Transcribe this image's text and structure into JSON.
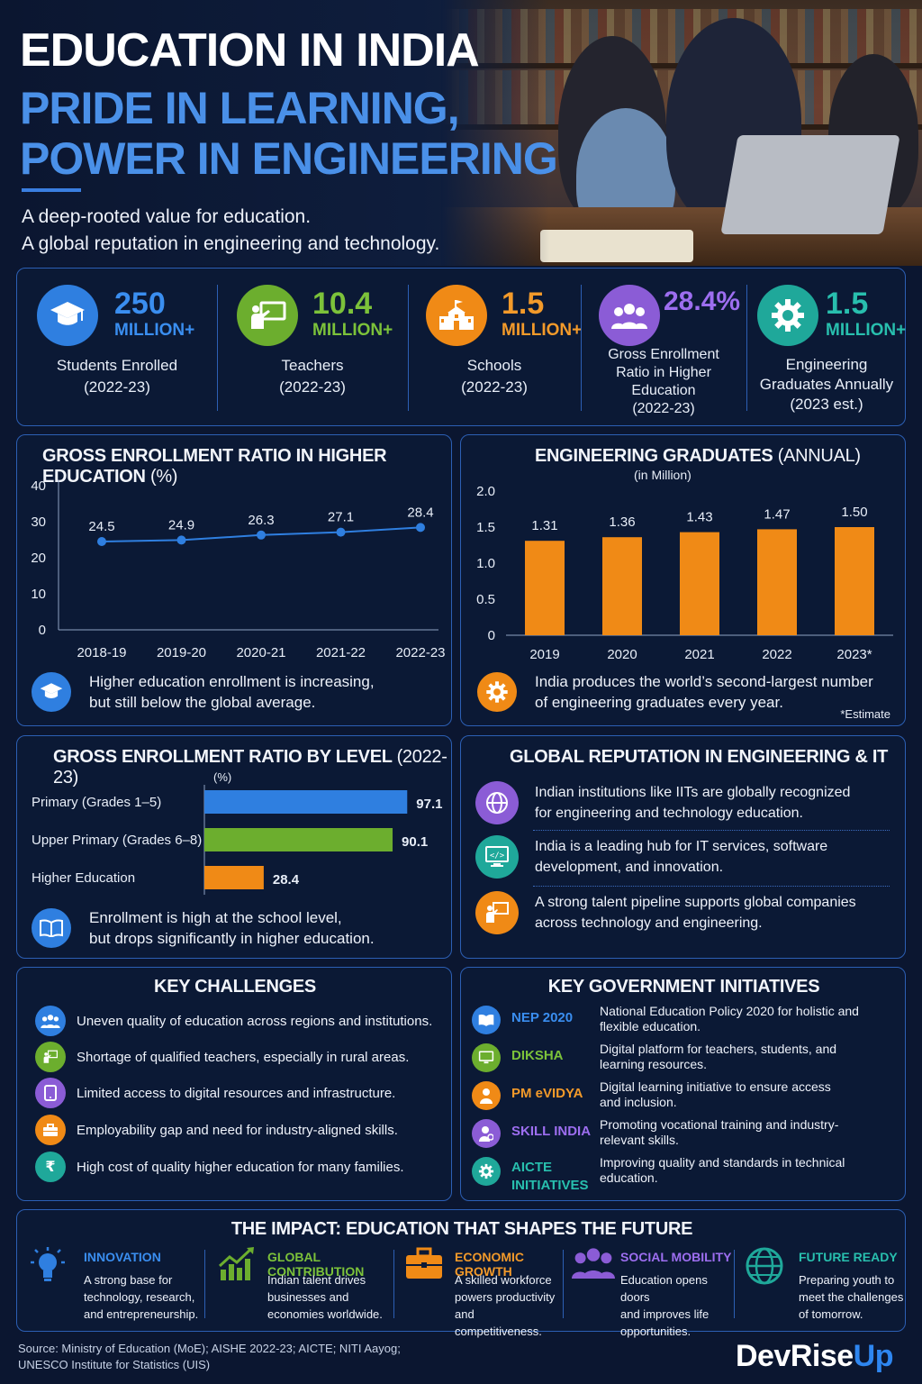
{
  "header": {
    "title": "EDUCATION IN INDIA",
    "subtitle_line1": "PRIDE IN LEARNING,",
    "subtitle_line2": "POWER IN ENGINEERING",
    "tagline_line1": "A deep-rooted value for education.",
    "tagline_line2": "A global reputation in engineering and technology."
  },
  "stats": [
    {
      "value": "250",
      "unit": "MILLION+",
      "label_line1": "Students Enrolled",
      "label_line2": "(2022-23)",
      "color": "#2f7fe0",
      "icon": "graduation-cap-icon"
    },
    {
      "value": "10.4",
      "unit": "MILLION+",
      "label_line1": "Teachers",
      "label_line2": "(2022-23)",
      "color": "#6cae2e",
      "icon": "teacher-board-icon"
    },
    {
      "value": "1.5",
      "unit": "MILLION+",
      "label_line1": "Schools",
      "label_line2": "(2022-23)",
      "color": "#f08a16",
      "icon": "school-building-icon"
    },
    {
      "value": "28.4%",
      "unit": "",
      "label_line1": "Gross Enrollment",
      "label_line2": "Ratio in Higher",
      "label_line3": "Education",
      "label_line4": "(2022-23)",
      "color": "#8b5cd6",
      "icon": "people-group-icon"
    },
    {
      "value": "1.5",
      "unit": "MILLION+",
      "label_line1": "Engineering",
      "label_line2": "Graduates Annually",
      "label_line3": "(2023 est.)",
      "color": "#1fa89a",
      "icon": "gear-icon"
    }
  ],
  "ger_chart": {
    "title": "GROSS ENROLLMENT RATIO IN HIGHER EDUCATION",
    "title_unit": "(%)",
    "note_line1": "Higher education enrollment is increasing,",
    "note_line2": "but still below the global average."
  },
  "eng_chart": {
    "title": "ENGINEERING GRADUATES",
    "title_unit": "(ANNUAL)",
    "subtitle": "(in Million)",
    "note_line1": "India produces the world’s second-largest number",
    "note_line2": "of engineering graduates every year.",
    "footnote": "*Estimate"
  },
  "level_chart": {
    "title": "GROSS ENROLLMENT RATIO BY LEVEL",
    "title_unit": "(2022-23)",
    "subtitle": "(%)",
    "note_line1": "Enrollment is high at the school level,",
    "note_line2": "but drops significantly in higher education."
  },
  "chart_data": [
    {
      "type": "line",
      "title": "GROSS ENROLLMENT RATIO IN HIGHER EDUCATION (%)",
      "x": [
        "2018-19",
        "2019-20",
        "2020-21",
        "2021-22",
        "2022-23"
      ],
      "values": [
        24.5,
        24.9,
        26.3,
        27.1,
        28.4
      ],
      "value_labels": [
        "24.5",
        "24.9",
        "26.3",
        "27.1",
        "28.4"
      ],
      "yticks": [
        "40",
        "30",
        "20",
        "10",
        "0"
      ],
      "ylim": [
        0,
        40
      ],
      "color": "#2f7fe0"
    },
    {
      "type": "bar",
      "title": "ENGINEERING GRADUATES (ANNUAL)",
      "categories": [
        "2019",
        "2020",
        "2021",
        "2022",
        "2023*"
      ],
      "values": [
        1.31,
        1.36,
        1.43,
        1.47,
        1.5
      ],
      "value_labels": [
        "1.31",
        "1.36",
        "1.43",
        "1.47",
        "1.50"
      ],
      "yticks": [
        "2.0",
        "1.5",
        "1.0",
        "0.5",
        "0"
      ],
      "ylim": [
        0,
        2.0
      ],
      "color": "#f08a16"
    },
    {
      "type": "bar",
      "orientation": "horizontal",
      "title": "GROSS ENROLLMENT RATIO BY LEVEL (2022-23)",
      "categories": [
        "Primary (Grades 1–5)",
        "Upper Primary (Grades 6–8)",
        "Higher Education"
      ],
      "values": [
        97.1,
        90.1,
        28.4
      ],
      "value_labels": [
        "97.1",
        "90.1",
        "28.4"
      ],
      "colors": [
        "#2f7fe0",
        "#6cae2e",
        "#f08a16"
      ],
      "xlim": [
        0,
        100
      ]
    }
  ],
  "global_reputation": {
    "title": "GLOBAL REPUTATION IN ENGINEERING & IT",
    "items": [
      {
        "line1": "Indian institutions like IITs are globally recognized",
        "line2": "for engineering and technology education.",
        "color": "#8b5cd6",
        "icon": "globe-network-icon"
      },
      {
        "line1": "India is a leading hub for IT services, software",
        "line2": "development, and innovation.",
        "color": "#1fa89a",
        "icon": "code-monitor-icon"
      },
      {
        "line1": "A strong talent pipeline supports global companies",
        "line2": "across technology and engineering.",
        "color": "#f08a16",
        "icon": "presenter-icon"
      }
    ]
  },
  "challenges": {
    "title": "KEY CHALLENGES",
    "items": [
      {
        "text": "Uneven quality of education across regions and institutions.",
        "color": "#2f7fe0",
        "icon": "people-icon"
      },
      {
        "text": "Shortage of qualified teachers, especially in rural areas.",
        "color": "#6cae2e",
        "icon": "teacher-icon"
      },
      {
        "text": "Limited access to digital resources and infrastructure.",
        "color": "#8b5cd6",
        "icon": "tablet-icon"
      },
      {
        "text": "Employability gap and need for industry-aligned skills.",
        "color": "#f08a16",
        "icon": "briefcase-icon"
      },
      {
        "text": "High cost of quality higher education for many families.",
        "color": "#1fa89a",
        "icon": "rupee-icon"
      }
    ]
  },
  "initiatives": {
    "title": "KEY GOVERNMENT INITIATIVES",
    "items": [
      {
        "name": "NEP 2020",
        "desc_line1": "National Education Policy 2020 for holistic and",
        "desc_line2": "flexible education.",
        "color": "#2f7fe0",
        "icon": "book-icon"
      },
      {
        "name": "DIKSHA",
        "desc_line1": "Digital platform for teachers, students, and",
        "desc_line2": "learning resources.",
        "color": "#6cae2e",
        "icon": "screen-icon"
      },
      {
        "name": "PM eVIDYA",
        "desc_line1": "Digital learning initiative to ensure access",
        "desc_line2": "and inclusion.",
        "color": "#f08a16",
        "icon": "learner-icon"
      },
      {
        "name": "SKILL INDIA",
        "desc_line1": "Promoting vocational training and industry-",
        "desc_line2": "relevant skills.",
        "color": "#8b5cd6",
        "icon": "skill-person-icon"
      },
      {
        "name_line1": "AICTE",
        "name_line2": "INITIATIVES",
        "desc_line1": "Improving quality and standards in technical",
        "desc_line2": "education.",
        "color": "#1fa89a",
        "icon": "gear-icon"
      }
    ]
  },
  "impact": {
    "title": "THE IMPACT: EDUCATION THAT SHAPES THE FUTURE",
    "items": [
      {
        "title": "INNOVATION",
        "line1": "A strong base for",
        "line2": "technology, research,",
        "line3": "and entrepreneurship.",
        "color": "#2f7fe0",
        "icon": "lightbulb-icon"
      },
      {
        "title": "GLOBAL CONTRIBUTION",
        "line1": "Indian talent drives",
        "line2": "businesses and",
        "line3": "economies worldwide.",
        "color": "#6cae2e",
        "icon": "growth-chart-icon"
      },
      {
        "title": "ECONOMIC GROWTH",
        "line1": "A skilled workforce",
        "line2": "powers productivity",
        "line3": "and competitiveness.",
        "color": "#f08a16",
        "icon": "briefcase-icon"
      },
      {
        "title": "SOCIAL MOBILITY",
        "line1": "Education opens doors",
        "line2": "and improves life",
        "line3": "opportunities.",
        "color": "#8b5cd6",
        "icon": "people-group-icon"
      },
      {
        "title": "FUTURE READY",
        "line1": "Preparing youth to",
        "line2": "meet the challenges",
        "line3": "of tomorrow.",
        "color": "#1fa89a",
        "icon": "globe-icon"
      }
    ]
  },
  "footer": {
    "source_line1": "Source: Ministry of Education (MoE); AISHE 2022-23; AICTE; NITI Aayog;",
    "source_line2": "UNESCO Institute for Statistics (UIS)",
    "brand_part1": "DevRise",
    "brand_part2": "Up"
  }
}
